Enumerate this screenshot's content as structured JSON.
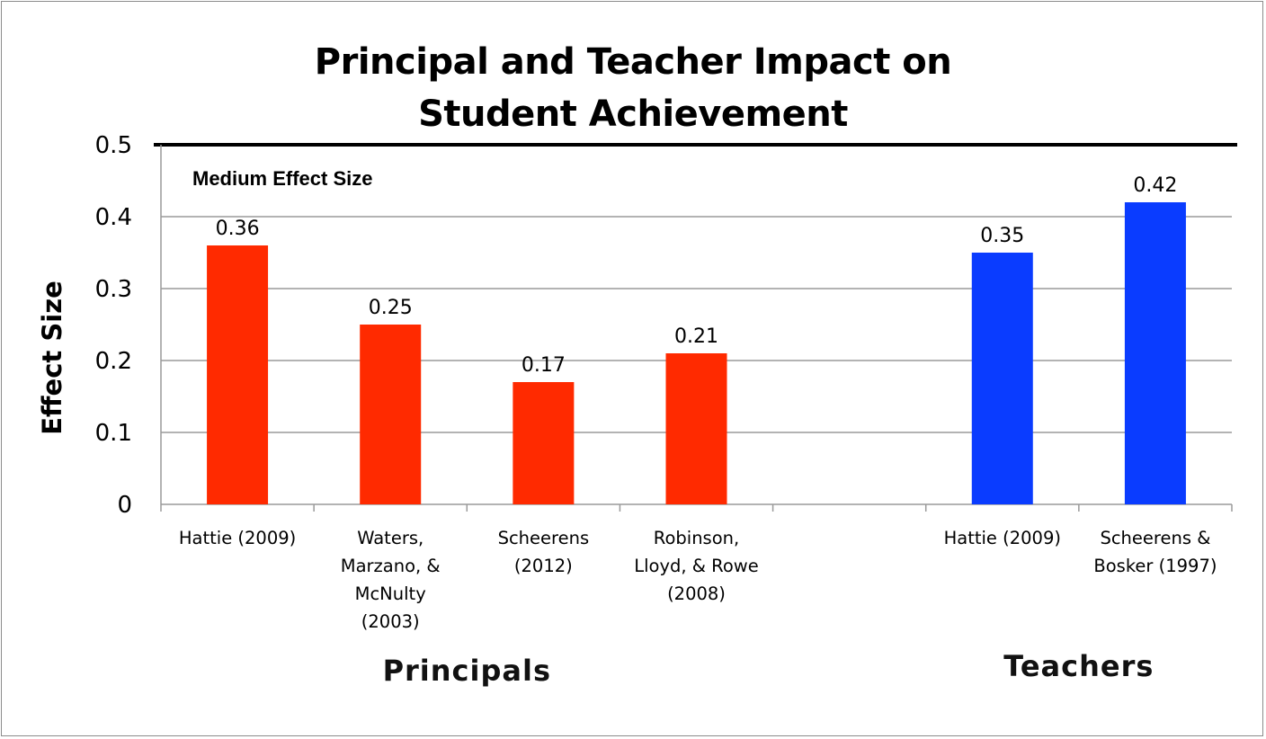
{
  "chart_data": {
    "type": "bar",
    "title_lines": [
      "Principal and Teacher Impact on",
      "Student  Achievement"
    ],
    "ylabel": "Effect Size",
    "xlabel": "",
    "ylim": [
      0,
      0.5
    ],
    "yticks": [
      "0",
      "0.1",
      "0.2",
      "0.3",
      "0.4",
      "0.5"
    ],
    "grid": true,
    "annotation": "Medium Effect Size",
    "categories": [
      "Hattie (2009)",
      "Waters,\nMarzano, &\nMcNulty\n(2003)",
      "Scheerens\n(2012)",
      "Robinson,\nLloyd, & Rowe\n(2008)",
      "",
      "Hattie (2009)",
      "Scheerens &\nBosker (1997)"
    ],
    "values": [
      0.36,
      0.25,
      0.17,
      0.21,
      null,
      0.35,
      0.42
    ],
    "value_labels": [
      "0.36",
      "0.25",
      "0.17",
      "0.21",
      "",
      "0.35",
      "0.42"
    ],
    "groups": [
      {
        "label": "Principals",
        "color": "#ff2a00"
      },
      {
        "label": "Teachers",
        "color": "#0a3cff"
      }
    ],
    "bar_group": [
      0,
      0,
      0,
      0,
      -1,
      1,
      1
    ]
  }
}
